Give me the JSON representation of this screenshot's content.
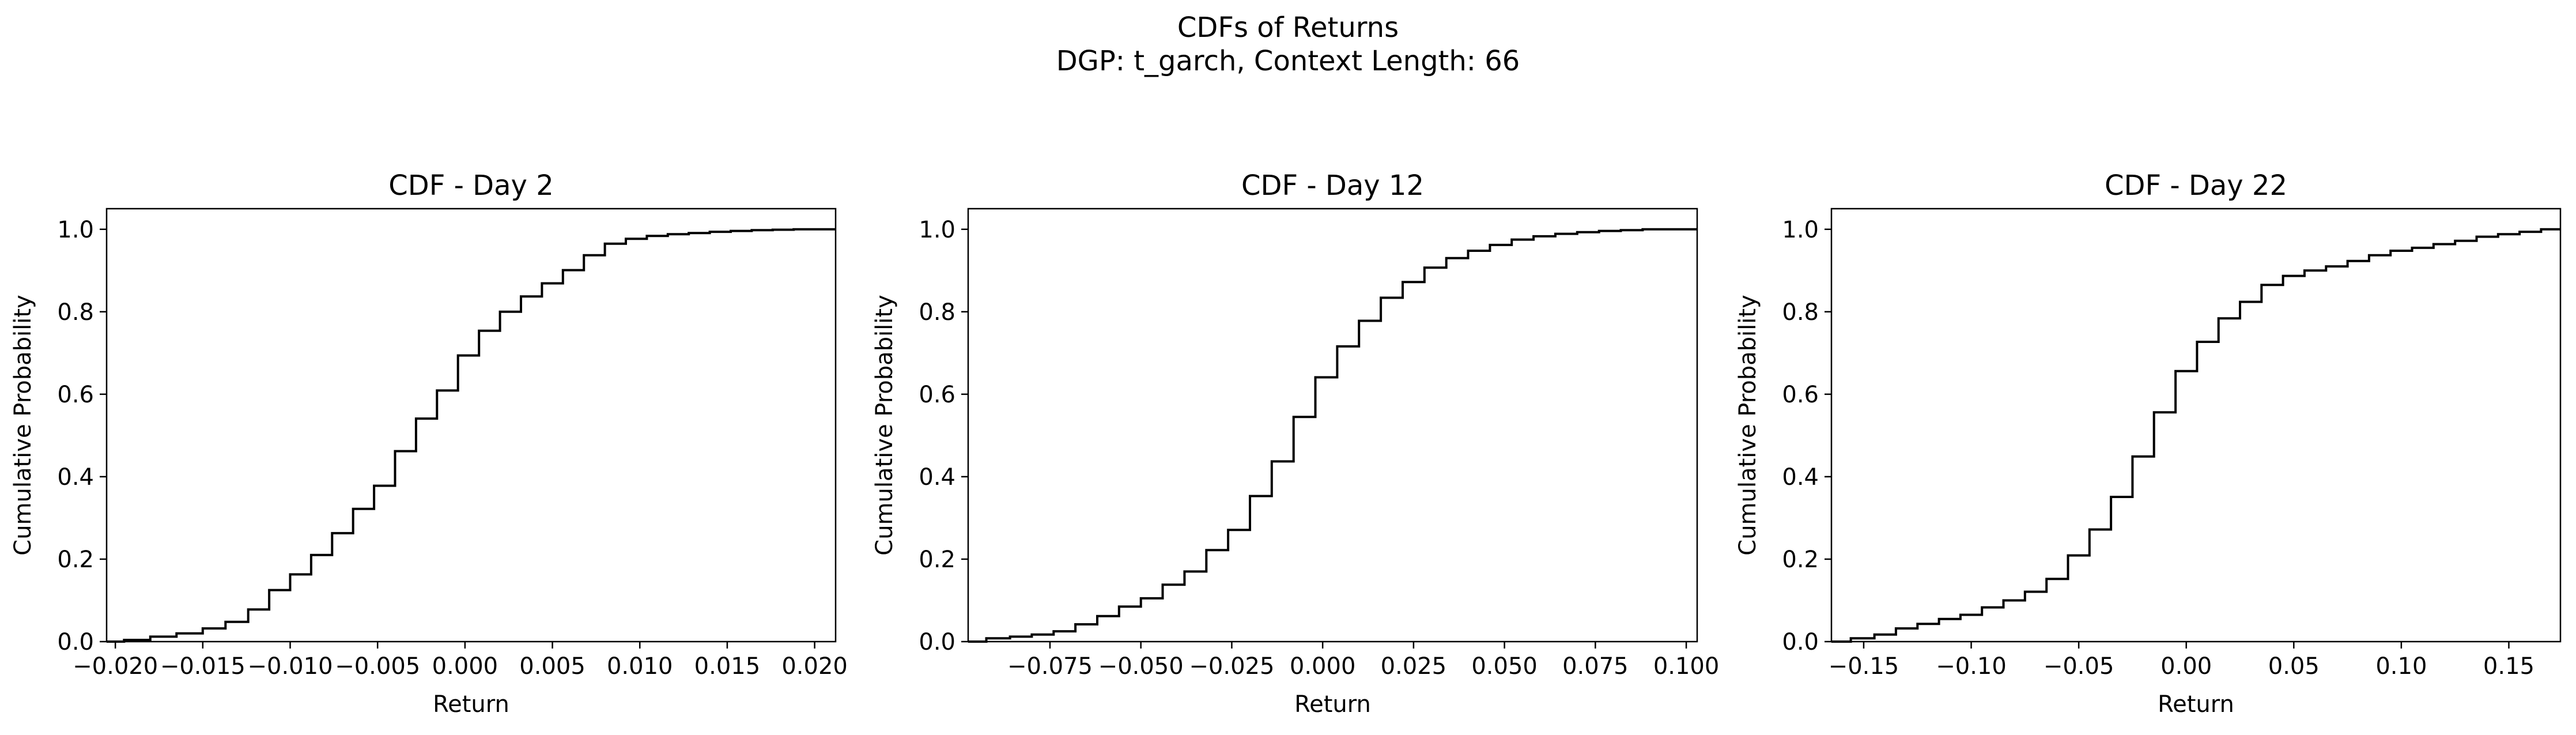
{
  "figure": {
    "title_line1": "CDFs of Returns",
    "title_line2": "DGP: t_garch, Context Length: 66"
  },
  "chart_data": [
    {
      "type": "line",
      "step": "post",
      "title": "CDF - Day 2",
      "xlabel": "Return",
      "ylabel": "Cumulative Probability",
      "xlim": [
        -0.0205,
        0.0212
      ],
      "ylim": [
        0,
        1.05
      ],
      "xticks": [
        -0.02,
        -0.015,
        -0.01,
        -0.005,
        0.0,
        0.005,
        0.01,
        0.015,
        0.02
      ],
      "xtick_labels": [
        "−0.020",
        "−0.015",
        "−0.010",
        "−0.005",
        "0.000",
        "0.005",
        "0.010",
        "0.015",
        "0.020"
      ],
      "yticks": [
        0,
        0.2,
        0.4,
        0.6,
        0.8,
        1.0
      ],
      "ytick_labels": [
        "0.0",
        "0.2",
        "0.4",
        "0.6",
        "0.8",
        "1.0"
      ],
      "grid": false,
      "line_color": "#000000",
      "x": [
        -0.0205,
        -0.0195,
        -0.018,
        -0.0165,
        -0.015,
        -0.0137,
        -0.0124,
        -0.0112,
        -0.01,
        -0.0088,
        -0.0076,
        -0.0064,
        -0.0052,
        -0.004,
        -0.0028,
        -0.0016,
        -0.0004,
        0.0008,
        0.002,
        0.0032,
        0.0044,
        0.0056,
        0.0068,
        0.008,
        0.0092,
        0.0104,
        0.0116,
        0.0128,
        0.014,
        0.0152,
        0.0164,
        0.0176,
        0.0188,
        0.02,
        0.0212
      ],
      "y": [
        0.0,
        0.004,
        0.012,
        0.02,
        0.032,
        0.048,
        0.078,
        0.125,
        0.163,
        0.21,
        0.263,
        0.322,
        0.378,
        0.462,
        0.541,
        0.609,
        0.694,
        0.754,
        0.8,
        0.837,
        0.869,
        0.901,
        0.937,
        0.965,
        0.977,
        0.984,
        0.988,
        0.991,
        0.994,
        0.996,
        0.998,
        0.999,
        1.0,
        1.0,
        1.0
      ]
    },
    {
      "type": "line",
      "step": "post",
      "title": "CDF - Day 12",
      "xlabel": "Return",
      "ylabel": "Cumulative Probability",
      "xlim": [
        -0.0975,
        0.103
      ],
      "ylim": [
        0,
        1.05
      ],
      "xticks": [
        -0.075,
        -0.05,
        -0.025,
        0.0,
        0.025,
        0.05,
        0.075,
        0.1
      ],
      "xtick_labels": [
        "−0.075",
        "−0.050",
        "−0.025",
        "0.000",
        "0.025",
        "0.050",
        "0.075",
        "0.100"
      ],
      "yticks": [
        0,
        0.2,
        0.4,
        0.6,
        0.8,
        1.0
      ],
      "ytick_labels": [
        "0.0",
        "0.2",
        "0.4",
        "0.6",
        "0.8",
        "1.0"
      ],
      "grid": false,
      "line_color": "#000000",
      "x": [
        -0.0975,
        -0.0925,
        -0.086,
        -0.08,
        -0.074,
        -0.068,
        -0.062,
        -0.056,
        -0.05,
        -0.044,
        -0.038,
        -0.032,
        -0.026,
        -0.02,
        -0.014,
        -0.008,
        -0.002,
        0.004,
        0.01,
        0.016,
        0.022,
        0.028,
        0.034,
        0.04,
        0.046,
        0.052,
        0.058,
        0.064,
        0.07,
        0.076,
        0.082,
        0.088,
        0.094,
        0.103
      ],
      "y": [
        0.0,
        0.008,
        0.012,
        0.017,
        0.025,
        0.042,
        0.062,
        0.085,
        0.105,
        0.138,
        0.17,
        0.222,
        0.271,
        0.353,
        0.437,
        0.545,
        0.641,
        0.716,
        0.778,
        0.834,
        0.872,
        0.907,
        0.93,
        0.948,
        0.962,
        0.975,
        0.983,
        0.989,
        0.993,
        0.996,
        0.998,
        1.0,
        1.0,
        1.0
      ]
    },
    {
      "type": "line",
      "step": "post",
      "title": "CDF - Day 22",
      "xlabel": "Return",
      "ylabel": "Cumulative Probability",
      "xlim": [
        -0.165,
        0.174
      ],
      "ylim": [
        0,
        1.05
      ],
      "xticks": [
        -0.15,
        -0.1,
        -0.05,
        0.0,
        0.05,
        0.1,
        0.15
      ],
      "xtick_labels": [
        "−0.15",
        "−0.10",
        "−0.05",
        "0.00",
        "0.05",
        "0.10",
        "0.15"
      ],
      "yticks": [
        0,
        0.2,
        0.4,
        0.6,
        0.8,
        1.0
      ],
      "ytick_labels": [
        "0.0",
        "0.2",
        "0.4",
        "0.6",
        "0.8",
        "1.0"
      ],
      "grid": false,
      "line_color": "#000000",
      "x": [
        -0.165,
        -0.156,
        -0.145,
        -0.135,
        -0.125,
        -0.115,
        -0.105,
        -0.095,
        -0.085,
        -0.075,
        -0.065,
        -0.055,
        -0.045,
        -0.035,
        -0.025,
        -0.015,
        -0.005,
        0.005,
        0.015,
        0.025,
        0.035,
        0.045,
        0.055,
        0.065,
        0.075,
        0.085,
        0.095,
        0.105,
        0.115,
        0.125,
        0.135,
        0.145,
        0.155,
        0.165,
        0.174
      ],
      "y": [
        0.0,
        0.008,
        0.017,
        0.032,
        0.043,
        0.055,
        0.065,
        0.083,
        0.1,
        0.121,
        0.152,
        0.209,
        0.272,
        0.351,
        0.449,
        0.556,
        0.656,
        0.727,
        0.784,
        0.824,
        0.865,
        0.887,
        0.9,
        0.91,
        0.923,
        0.937,
        0.948,
        0.955,
        0.964,
        0.972,
        0.982,
        0.988,
        0.994,
        1.0,
        1.0
      ]
    }
  ]
}
